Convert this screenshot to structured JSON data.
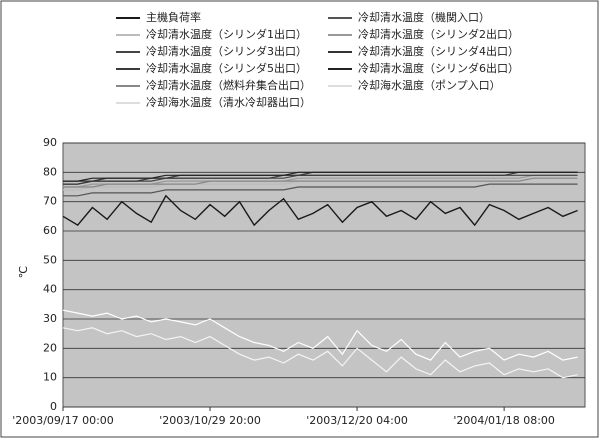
{
  "chart_data": {
    "type": "line",
    "y_label": "℃",
    "categories": [
      "'2003/09/17 00:00",
      null,
      null,
      null,
      null,
      null,
      null,
      null,
      null,
      null,
      "'2003/10/29 20:00",
      null,
      null,
      null,
      null,
      null,
      null,
      null,
      null,
      null,
      "'2003/12/20 04:00",
      null,
      null,
      null,
      null,
      null,
      null,
      null,
      null,
      null,
      "'2004/01/18 08:00",
      null,
      null,
      null,
      null,
      null
    ],
    "ylim": [
      0,
      90
    ],
    "yticks": [
      0,
      10,
      20,
      30,
      40,
      50,
      60,
      70,
      80,
      90
    ],
    "grid": true,
    "series": [
      {
        "name": "主機負荷率",
        "color": "#1a1a1a",
        "values": [
          65,
          62,
          68,
          64,
          70,
          66,
          63,
          72,
          67,
          64,
          69,
          65,
          70,
          62,
          67,
          71,
          64,
          66,
          69,
          63,
          68,
          70,
          65,
          67,
          64,
          70,
          66,
          68,
          62,
          69,
          67,
          64,
          66,
          68,
          65,
          67
        ]
      },
      {
        "name": "冷却清水温度（機関入口）",
        "color": "#555555",
        "values": [
          72,
          72,
          73,
          73,
          73,
          73,
          73,
          74,
          74,
          74,
          74,
          74,
          74,
          74,
          74,
          74,
          75,
          75,
          75,
          75,
          75,
          75,
          75,
          75,
          75,
          75,
          75,
          75,
          75,
          76,
          76,
          76,
          76,
          76,
          76,
          76
        ]
      },
      {
        "name": "冷却清水温度（シリンダ1出口）",
        "color": "#bbbbbb",
        "values": [
          74,
          74,
          75,
          75,
          75,
          75,
          75,
          76,
          76,
          76,
          76,
          76,
          76,
          76,
          76,
          76,
          77,
          77,
          77,
          77,
          77,
          77,
          77,
          77,
          77,
          77,
          77,
          77,
          77,
          77,
          77,
          77,
          78,
          78,
          78,
          78
        ]
      },
      {
        "name": "冷却清水温度（シリンダ2出口）",
        "color": "#999999",
        "values": [
          75,
          75,
          76,
          76,
          76,
          76,
          76,
          77,
          77,
          77,
          77,
          77,
          77,
          77,
          77,
          77,
          78,
          78,
          78,
          78,
          78,
          78,
          78,
          78,
          78,
          78,
          78,
          78,
          78,
          78,
          78,
          78,
          79,
          79,
          79,
          79
        ]
      },
      {
        "name": "冷却清水温度（シリンダ3出口）",
        "color": "#444444",
        "values": [
          76,
          76,
          77,
          77,
          77,
          77,
          77,
          78,
          78,
          78,
          78,
          78,
          78,
          78,
          78,
          78,
          79,
          79,
          79,
          79,
          79,
          79,
          79,
          79,
          79,
          79,
          79,
          79,
          79,
          79,
          79,
          79,
          79,
          79,
          79,
          79
        ]
      },
      {
        "name": "冷却清水温度（シリンダ4出口）",
        "color": "#333333",
        "values": [
          77,
          77,
          77,
          78,
          78,
          78,
          78,
          78,
          79,
          79,
          79,
          79,
          79,
          79,
          79,
          79,
          79,
          80,
          80,
          80,
          80,
          80,
          80,
          80,
          80,
          80,
          80,
          80,
          80,
          80,
          80,
          80,
          80,
          80,
          80,
          80
        ]
      },
      {
        "name": "冷却清水温度（シリンダ5出口）",
        "color": "#3a3a3a",
        "values": [
          76,
          76,
          77,
          77,
          77,
          77,
          78,
          78,
          78,
          78,
          78,
          78,
          78,
          78,
          78,
          79,
          79,
          79,
          79,
          79,
          79,
          79,
          79,
          79,
          79,
          79,
          79,
          79,
          79,
          79,
          79,
          80,
          80,
          80,
          80,
          80
        ]
      },
      {
        "name": "冷却清水温度（シリンダ6出口）",
        "color": "#222222",
        "values": [
          77,
          77,
          78,
          78,
          78,
          78,
          78,
          79,
          79,
          79,
          79,
          79,
          79,
          79,
          79,
          79,
          80,
          80,
          80,
          80,
          80,
          80,
          80,
          80,
          80,
          80,
          80,
          80,
          80,
          80,
          80,
          80,
          80,
          80,
          80,
          80
        ]
      },
      {
        "name": "冷却清水温度（燃料弁集合出口）",
        "color": "#888888",
        "values": [
          75,
          75,
          75,
          76,
          76,
          76,
          76,
          76,
          76,
          76,
          77,
          77,
          77,
          77,
          77,
          77,
          77,
          77,
          77,
          77,
          77,
          77,
          77,
          77,
          77,
          77,
          77,
          77,
          77,
          77,
          77,
          77,
          78,
          78,
          78,
          78
        ]
      },
      {
        "name": "冷却海水温度（ポンプ入口）",
        "color": "#ffffff",
        "values": [
          33,
          32,
          31,
          32,
          30,
          31,
          29,
          30,
          29,
          28,
          30,
          27,
          24,
          22,
          21,
          19,
          22,
          20,
          24,
          18,
          26,
          21,
          19,
          23,
          18,
          16,
          22,
          17,
          19,
          20,
          16,
          18,
          17,
          19,
          16,
          17
        ]
      },
      {
        "name": "冷却海水温度（清水冷却器出口）",
        "color": "#f4f4f4",
        "values": [
          27,
          26,
          27,
          25,
          26,
          24,
          25,
          23,
          24,
          22,
          24,
          21,
          18,
          16,
          17,
          15,
          18,
          16,
          19,
          14,
          20,
          16,
          12,
          17,
          13,
          11,
          16,
          12,
          14,
          15,
          11,
          13,
          12,
          13,
          10,
          11
        ]
      }
    ]
  }
}
